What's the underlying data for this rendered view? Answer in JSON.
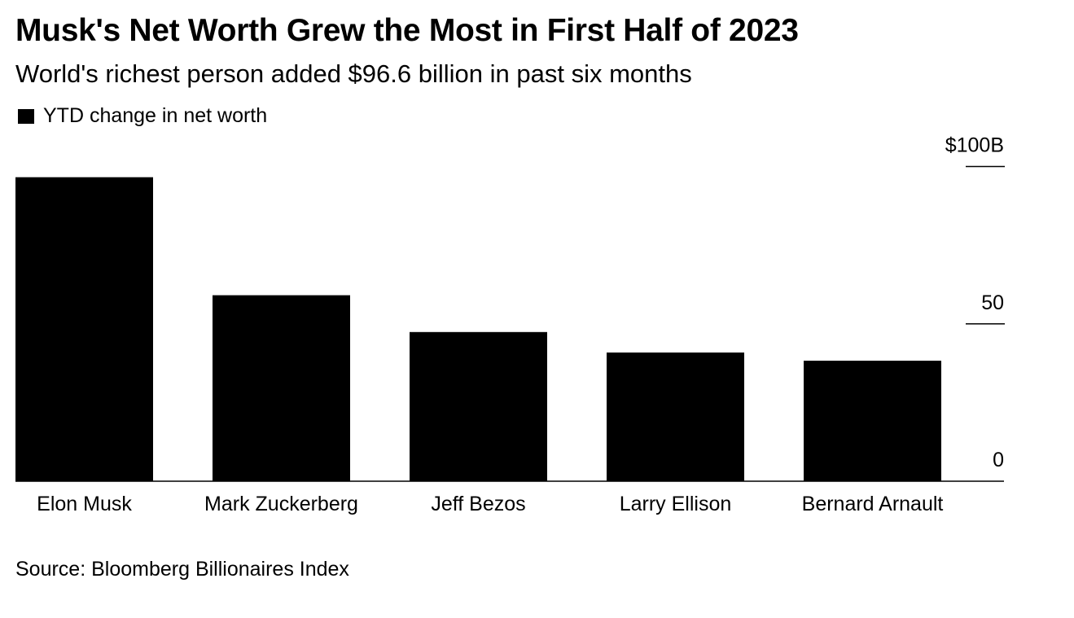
{
  "chart_data": {
    "type": "bar",
    "title": "Musk's Net Worth Grew the Most in First Half of 2023",
    "subtitle": "World's richest person added $96.6 billion in past six months",
    "legend": [
      {
        "name": "YTD change in net worth",
        "color": "#000000"
      }
    ],
    "legend_placement": "top-left",
    "categories": [
      "Elon Musk",
      "Mark Zuckerberg",
      "Jeff Bezos",
      "Larry Ellison",
      "Bernard Arnault"
    ],
    "series": [
      {
        "name": "YTD change in net worth",
        "values": [
          96.6,
          59.1,
          47.4,
          40.9,
          38.3
        ]
      }
    ],
    "ylim": [
      0,
      100
    ],
    "yticks": [
      {
        "value": 0,
        "label": "0"
      },
      {
        "value": 50,
        "label": "50"
      },
      {
        "value": 100,
        "label": "$100B"
      }
    ],
    "y_axis_side": "right",
    "grid": false,
    "bar_color": "#000000",
    "source": "Source: Bloomberg Billionaires Index"
  }
}
